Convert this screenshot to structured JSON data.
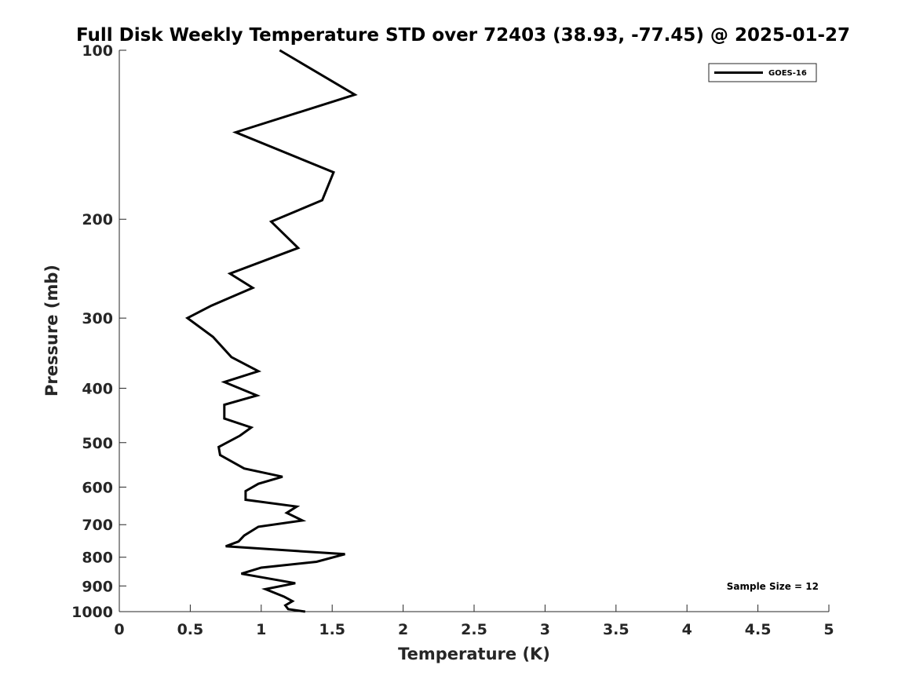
{
  "chart_data": {
    "type": "line",
    "title": "Full Disk Weekly Temperature STD over 72403 (38.93, -77.45) @ 2025-01-27",
    "xlabel": "Temperature (K)",
    "ylabel": "Pressure (mb)",
    "xlim": [
      0,
      5
    ],
    "ylim": [
      100,
      1000
    ],
    "yscale": "log",
    "y_reversed": true,
    "x_ticks": [
      "0",
      "0.5",
      "1",
      "1.5",
      "2",
      "2.5",
      "3",
      "3.5",
      "4",
      "4.5",
      "5"
    ],
    "y_ticks": [
      "100",
      "200",
      "300",
      "400",
      "500",
      "600",
      "700",
      "800",
      "900",
      "1000"
    ],
    "grid": false,
    "legend_position": "top-right",
    "series": [
      {
        "name": "GOES-16",
        "color": "#000000",
        "points": [
          [
            1.13,
            100
          ],
          [
            1.66,
            120
          ],
          [
            0.82,
            140
          ],
          [
            1.51,
            165
          ],
          [
            1.43,
            185
          ],
          [
            1.07,
            202
          ],
          [
            1.26,
            225
          ],
          [
            0.78,
            250
          ],
          [
            0.94,
            265
          ],
          [
            0.65,
            285
          ],
          [
            0.48,
            300
          ],
          [
            0.66,
            324
          ],
          [
            0.79,
            352
          ],
          [
            0.98,
            373
          ],
          [
            0.74,
            390
          ],
          [
            0.97,
            412
          ],
          [
            0.74,
            428
          ],
          [
            0.74,
            453
          ],
          [
            0.93,
            470
          ],
          [
            0.85,
            486
          ],
          [
            0.7,
            509
          ],
          [
            0.71,
            526
          ],
          [
            0.88,
            556
          ],
          [
            1.15,
            575
          ],
          [
            0.98,
            592
          ],
          [
            0.89,
            610
          ],
          [
            0.89,
            632
          ],
          [
            1.25,
            650
          ],
          [
            1.18,
            667
          ],
          [
            1.29,
            688
          ],
          [
            0.98,
            706
          ],
          [
            0.88,
            732
          ],
          [
            0.84,
            750
          ],
          [
            0.75,
            765
          ],
          [
            1.59,
            790
          ],
          [
            1.39,
            815
          ],
          [
            1.0,
            835
          ],
          [
            0.86,
            856
          ],
          [
            1.24,
            890
          ],
          [
            1.03,
            912
          ],
          [
            1.16,
            940
          ],
          [
            1.22,
            958
          ],
          [
            1.17,
            975
          ],
          [
            1.19,
            990
          ],
          [
            1.31,
            1000
          ]
        ]
      }
    ],
    "annotations": [
      "Sample Size = 12"
    ]
  }
}
